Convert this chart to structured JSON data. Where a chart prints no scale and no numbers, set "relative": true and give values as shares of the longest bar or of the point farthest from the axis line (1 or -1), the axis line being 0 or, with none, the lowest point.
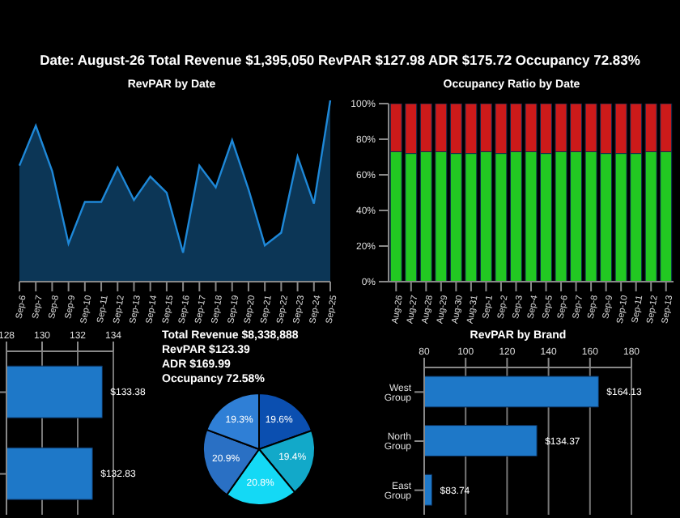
{
  "chart_data": [
    {
      "type": "other",
      "title": "Date: August-26 Total Revenue $1,395,050 RevPAR $127.98 ADR $175.72 Occupancy 72.83%"
    },
    {
      "type": "area",
      "title": "RevPAR by Date",
      "relative": true,
      "color": "#1e88d8",
      "categories": [
        "Sep-6",
        "Sep-7",
        "Sep-8",
        "Sep-9",
        "Sep-10",
        "Sep-11",
        "Sep-12",
        "Sep-13",
        "Sep-14",
        "Sep-15",
        "Sep-16",
        "Sep-17",
        "Sep-18",
        "Sep-19",
        "Sep-20",
        "Sep-21",
        "Sep-22",
        "Sep-23",
        "Sep-24",
        "Sep-25"
      ],
      "values": [
        0.64,
        0.86,
        0.61,
        0.21,
        0.44,
        0.44,
        0.63,
        0.45,
        0.58,
        0.49,
        0.16,
        0.64,
        0.52,
        0.78,
        0.51,
        0.2,
        0.27,
        0.69,
        0.43,
        1
      ]
    },
    {
      "type": "bar",
      "title": "Occupancy Ratio by Date",
      "stacked": true,
      "categories": [
        "Aug-26",
        "Aug-27",
        "Aug-28",
        "Aug-29",
        "Aug-30",
        "Aug-31",
        "Sep-1",
        "Sep-2",
        "Sep-3",
        "Sep-4",
        "Sep-5",
        "Sep-6",
        "Sep-7",
        "Sep-8",
        "Sep-9",
        "Sep-10",
        "Sep-11",
        "Sep-12",
        "Sep-13"
      ],
      "series": [
        {
          "color": "#22c822",
          "values": [
            73,
            72,
            73,
            73,
            72,
            72,
            73,
            72,
            73,
            73,
            72,
            73,
            73,
            73,
            72,
            72,
            72,
            73,
            73
          ]
        },
        {
          "color": "#cc1a1a",
          "values": [
            27,
            28,
            27,
            27,
            28,
            28,
            27,
            28,
            27,
            27,
            28,
            27,
            27,
            27,
            28,
            28,
            28,
            27,
            27
          ]
        }
      ],
      "ylim": [
        0,
        100
      ],
      "yticks": [
        {
          "value": 0,
          "label": "0%"
        },
        {
          "value": 20,
          "label": "20%"
        },
        {
          "value": 40,
          "label": "40%"
        },
        {
          "value": 60,
          "label": "60%"
        },
        {
          "value": 80,
          "label": "80%"
        },
        {
          "value": 100,
          "label": "100%"
        }
      ]
    },
    {
      "type": "bar",
      "orientation": "horizontal",
      "grid": "x",
      "color": "#1e78c8",
      "categories": [
        null,
        null
      ],
      "values": [
        133.38,
        132.83
      ],
      "value_labels": [
        "$133.38",
        "$132.83"
      ],
      "xlim": [
        128,
        134
      ],
      "xticks": [
        128,
        130,
        132,
        134
      ]
    },
    {
      "type": "pie",
      "annotations": [
        "Total Revenue $8,338,888",
        "RevPAR $123.39",
        "ADR $169.99",
        "Occupancy 72.58%"
      ],
      "categories": [
        null,
        null,
        null,
        null,
        null
      ],
      "values": [
        19.6,
        19.4,
        20.8,
        20.9,
        19.3
      ],
      "value_labels": [
        "19.6%",
        "19.4%",
        "20.8%",
        "20.9%",
        "19.3%"
      ],
      "colors": [
        "#0b4fb0",
        "#12a9c9",
        "#14d9f5",
        "#2a70c4",
        "#2f7fd6"
      ]
    },
    {
      "type": "bar",
      "orientation": "horizontal",
      "title": "RevPAR by Brand",
      "grid": "x",
      "color": "#1e78c8",
      "categories": [
        "West Group",
        "North Group",
        "East Group"
      ],
      "values": [
        164.13,
        134.37,
        83.74
      ],
      "value_labels": [
        "$164.13",
        "$134.37",
        "$83.74"
      ],
      "xlim": [
        80,
        180
      ],
      "xticks": [
        80,
        100,
        120,
        140,
        160,
        180
      ]
    }
  ]
}
